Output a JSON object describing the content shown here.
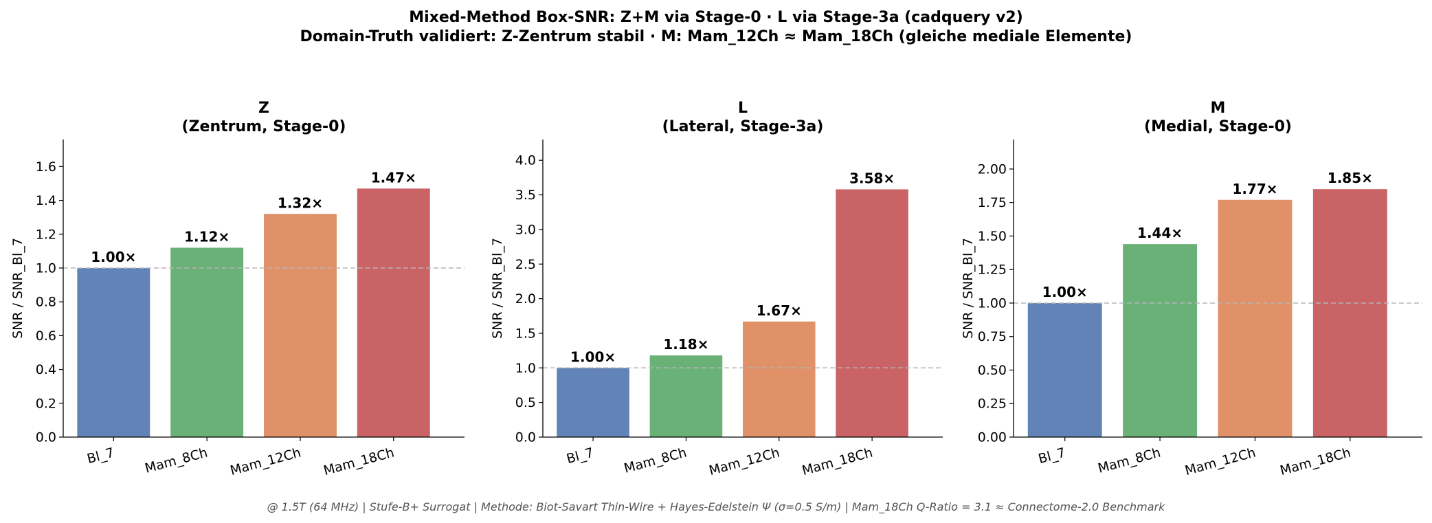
{
  "title_line1": "Mixed-Method Box-SNR: Z+M via Stage-0 · L via Stage-3a (cadquery v2)",
  "title_line2": "Domain-Truth validiert: Z-Zentrum stabil · M: Mam_12Ch ≈ Mam_18Ch (gleiche mediale Elemente)",
  "footer": "@ 1.5T (64 MHz) | Stufe-B+ Surrogat | Methode: Biot-Savart Thin-Wire + Hayes-Edelstein Ψ (σ=0.5 S/m) | Mam_18Ch Q-Ratio = 3.1  ≈  Connectome-2.0 Benchmark",
  "colors": {
    "Bl_7": "#6283b8",
    "Mam_8Ch": "#6ab177",
    "Mam_12Ch": "#e09167",
    "Mam_18Ch": "#c96366",
    "reference_line": "#b5b5b5"
  },
  "chart_data": [
    {
      "type": "bar",
      "title_line1": "Z",
      "title_line2": "(Zentrum, Stage-0)",
      "ylabel": "SNR / SNR_Bl_7",
      "categories": [
        "Bl_7",
        "Mam_8Ch",
        "Mam_12Ch",
        "Mam_18Ch"
      ],
      "values": [
        1.0,
        1.12,
        1.32,
        1.47
      ],
      "value_labels": [
        "1.00×",
        "1.12×",
        "1.32×",
        "1.47×"
      ],
      "ylim": [
        0,
        1.76
      ],
      "yticks": [
        0.0,
        0.2,
        0.4,
        0.6,
        0.8,
        1.0,
        1.2,
        1.4,
        1.6
      ],
      "ytick_labels": [
        "0.0",
        "0.2",
        "0.4",
        "0.6",
        "0.8",
        "1.0",
        "1.2",
        "1.4",
        "1.6"
      ],
      "reference_line": 1.0
    },
    {
      "type": "bar",
      "title_line1": "L",
      "title_line2": "(Lateral, Stage-3a)",
      "ylabel": "SNR / SNR_Bl_7",
      "categories": [
        "Bl_7",
        "Mam_8Ch",
        "Mam_12Ch",
        "Mam_18Ch"
      ],
      "values": [
        1.0,
        1.18,
        1.67,
        3.58
      ],
      "value_labels": [
        "1.00×",
        "1.18×",
        "1.67×",
        "3.58×"
      ],
      "ylim": [
        0,
        4.3
      ],
      "yticks": [
        0.0,
        0.5,
        1.0,
        1.5,
        2.0,
        2.5,
        3.0,
        3.5,
        4.0
      ],
      "ytick_labels": [
        "0.0",
        "0.5",
        "1.0",
        "1.5",
        "2.0",
        "2.5",
        "3.0",
        "3.5",
        "4.0"
      ],
      "reference_line": 1.0
    },
    {
      "type": "bar",
      "title_line1": "M",
      "title_line2": "(Medial, Stage-0)",
      "ylabel": "SNR / SNR_Bl_7",
      "categories": [
        "Bl_7",
        "Mam_8Ch",
        "Mam_12Ch",
        "Mam_18Ch"
      ],
      "values": [
        1.0,
        1.44,
        1.77,
        1.85
      ],
      "value_labels": [
        "1.00×",
        "1.44×",
        "1.77×",
        "1.85×"
      ],
      "ylim": [
        0,
        2.22
      ],
      "yticks": [
        0.0,
        0.25,
        0.5,
        0.75,
        1.0,
        1.25,
        1.5,
        1.75,
        2.0
      ],
      "ytick_labels": [
        "0.00",
        "0.25",
        "0.50",
        "0.75",
        "1.00",
        "1.25",
        "1.50",
        "1.75",
        "2.00"
      ],
      "reference_line": 1.0
    }
  ]
}
